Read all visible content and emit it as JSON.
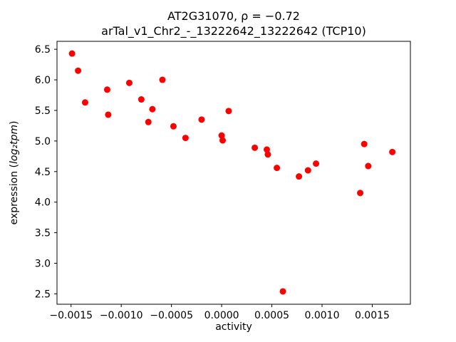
{
  "chart_data": {
    "type": "scatter",
    "title_line1": "AT2G31070, ρ = −0.72",
    "title_line2": "arTal_v1_Chr2_-_13222642_13222642 (TCP10)",
    "xlabel": "activity",
    "ylabel_prefix": "expression (",
    "ylabel_math": "log₂tpm",
    "ylabel_suffix": ")",
    "marker_color": "#ff0000",
    "axis_color": "#000000",
    "grid": "off",
    "legend": "none",
    "xlim": [
      -0.00164,
      0.00188
    ],
    "ylim": [
      2.33,
      6.63
    ],
    "xticks": [
      {
        "v": -0.0015,
        "label": "−0.0015"
      },
      {
        "v": -0.001,
        "label": "−0.0010"
      },
      {
        "v": -0.0005,
        "label": "−0.0005"
      },
      {
        "v": 0.0,
        "label": "0.0000"
      },
      {
        "v": 0.0005,
        "label": "0.0005"
      },
      {
        "v": 0.001,
        "label": "0.0010"
      },
      {
        "v": 0.0015,
        "label": "0.0015"
      }
    ],
    "yticks": [
      {
        "v": 2.5,
        "label": "2.5"
      },
      {
        "v": 3.0,
        "label": "3.0"
      },
      {
        "v": 3.5,
        "label": "3.5"
      },
      {
        "v": 4.0,
        "label": "4.0"
      },
      {
        "v": 4.5,
        "label": "4.5"
      },
      {
        "v": 5.0,
        "label": "5.0"
      },
      {
        "v": 5.5,
        "label": "5.5"
      },
      {
        "v": 6.0,
        "label": "6.0"
      },
      {
        "v": 6.5,
        "label": "6.5"
      }
    ],
    "points": [
      [
        -0.00149,
        6.43
      ],
      [
        -0.00143,
        6.15
      ],
      [
        -0.00136,
        5.63
      ],
      [
        -0.00114,
        5.84
      ],
      [
        -0.00113,
        5.43
      ],
      [
        -0.00092,
        5.95
      ],
      [
        -0.0008,
        5.68
      ],
      [
        -0.00073,
        5.31
      ],
      [
        -0.00069,
        5.52
      ],
      [
        -0.00059,
        6.0
      ],
      [
        -0.00048,
        5.24
      ],
      [
        -0.00036,
        5.05
      ],
      [
        -0.0002,
        5.35
      ],
      [
        0.0,
        5.09
      ],
      [
        1e-05,
        5.01
      ],
      [
        7e-05,
        5.49
      ],
      [
        0.00033,
        4.89
      ],
      [
        0.00045,
        4.86
      ],
      [
        0.00046,
        4.78
      ],
      [
        0.00055,
        4.56
      ],
      [
        0.00061,
        2.54
      ],
      [
        0.00077,
        4.42
      ],
      [
        0.00086,
        4.52
      ],
      [
        0.00094,
        4.63
      ],
      [
        0.00138,
        4.15
      ],
      [
        0.00142,
        4.95
      ],
      [
        0.00146,
        4.59
      ],
      [
        0.0017,
        4.82
      ]
    ]
  }
}
